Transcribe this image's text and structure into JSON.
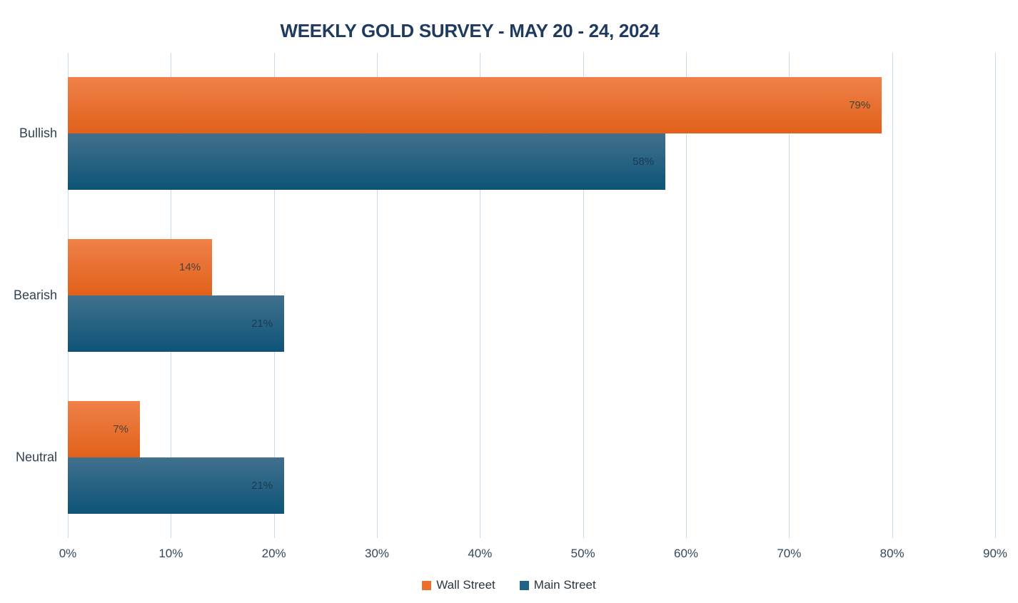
{
  "title": "WEEKLY GOLD SURVEY - MAY 20 - 24, 2024",
  "chart_data": {
    "type": "bar",
    "orientation": "horizontal",
    "title": "WEEKLY GOLD SURVEY - MAY 20 - 24, 2024",
    "categories": [
      "Bullish",
      "Bearish",
      "Neutral"
    ],
    "series": [
      {
        "name": "Wall Street",
        "values": [
          79,
          14,
          7
        ],
        "value_labels": [
          "79%",
          "14%",
          "7%"
        ],
        "gradient_top": "#EF8149",
        "gradient_bottom": "#E1611A",
        "legend_color": "#EC6F2E",
        "value_label_color": "#4A4236"
      },
      {
        "name": "Main Street",
        "values": [
          58,
          21,
          21
        ],
        "value_labels": [
          "58%",
          "21%",
          "21%"
        ],
        "gradient_top": "#41708E",
        "gradient_bottom": "#0D5477",
        "legend_color": "#216287",
        "value_label_color": "#1C3A52"
      }
    ],
    "xlabel": "",
    "ylabel": "",
    "x_ticks": [
      "0%",
      "10%",
      "20%",
      "30%",
      "40%",
      "50%",
      "60%",
      "70%",
      "80%",
      "90%"
    ],
    "xlim": [
      0,
      90
    ],
    "grid": true,
    "legend_position": "bottom",
    "colors": {
      "title_text": "#1F3A5F",
      "axis_text": "#33475C",
      "category_text": "#2F4354",
      "gridline": "#C9DAEA",
      "background": "#FFFFFF"
    }
  }
}
